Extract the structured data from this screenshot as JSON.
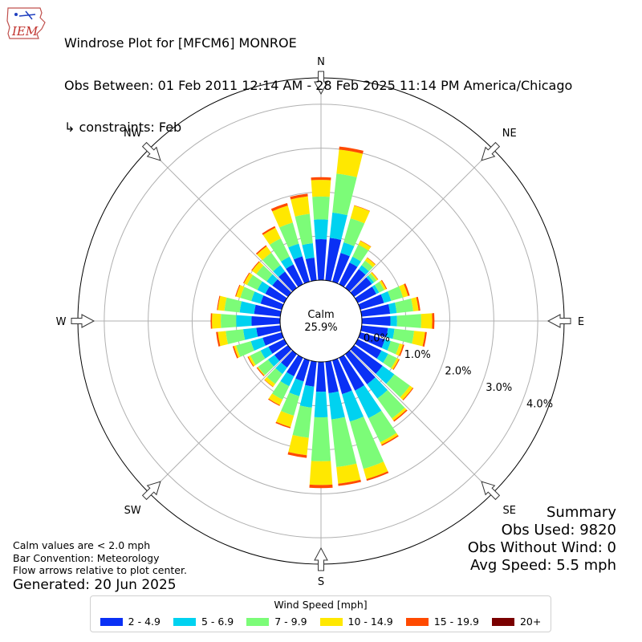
{
  "header": {
    "logo_text": "IEM",
    "title_line1": "Windrose Plot for [MFCM6] MONROE",
    "title_line2": "Obs Between: 01 Feb 2011 12:14 AM - 28 Feb 2025 11:14 PM America/Chicago",
    "title_line3": "↳ constraints: Feb"
  },
  "notes": {
    "line1": "Calm values are < 2.0 mph",
    "line2": "Bar Convention: Meteorology",
    "line3": "Flow arrows relative to plot center.",
    "generated": "Generated: 20 Jun 2025"
  },
  "summary": {
    "title": "Summary",
    "obs_used": "Obs Used: 9820",
    "obs_without_wind": "Obs Without Wind: 0",
    "avg_speed": "Avg Speed: 5.5 mph"
  },
  "legend": {
    "title": "Wind Speed [mph]",
    "items": [
      {
        "label": "2 - 4.9",
        "color": "#0a30f5"
      },
      {
        "label": "5 - 6.9",
        "color": "#00d2f0"
      },
      {
        "label": "7 - 9.9",
        "color": "#7cfc78"
      },
      {
        "label": "10 - 14.9",
        "color": "#ffe800"
      },
      {
        "label": "15 - 19.9",
        "color": "#ff4a00"
      },
      {
        "label": "20+",
        "color": "#7a0000"
      }
    ]
  },
  "chart_data": {
    "type": "windrose",
    "calm_label": "Calm",
    "calm_value": "25.9%",
    "compass_labels": [
      "N",
      "NE",
      "E",
      "SE",
      "S",
      "SW",
      "W",
      "NW"
    ],
    "radial_ticks": [
      "0.0%",
      "1.0%",
      "2.0%",
      "3.0%",
      "4.0%"
    ],
    "radial_max": 4.6,
    "directions_deg": [
      0,
      10,
      20,
      30,
      40,
      50,
      60,
      70,
      80,
      90,
      100,
      110,
      120,
      130,
      140,
      150,
      160,
      170,
      180,
      190,
      200,
      210,
      220,
      230,
      240,
      250,
      260,
      270,
      280,
      290,
      300,
      310,
      320,
      330,
      340,
      350
    ],
    "series": [
      {
        "name": "2 - 4.9",
        "color": "#0a30f5",
        "values": [
          0.93,
          0.97,
          0.68,
          0.55,
          0.53,
          0.5,
          0.47,
          0.56,
          0.65,
          0.65,
          0.6,
          0.58,
          0.6,
          0.8,
          0.85,
          0.83,
          0.8,
          0.72,
          0.68,
          0.57,
          0.5,
          0.47,
          0.38,
          0.38,
          0.4,
          0.45,
          0.55,
          0.65,
          0.6,
          0.5,
          0.48,
          0.44,
          0.46,
          0.5,
          0.6,
          0.52
        ]
      },
      {
        "name": "5 - 6.9",
        "color": "#00d2f0",
        "values": [
          0.45,
          0.58,
          0.25,
          0.15,
          0.11,
          0.06,
          0.07,
          0.17,
          0.15,
          0.15,
          0.15,
          0.14,
          0.17,
          0.33,
          0.4,
          0.7,
          0.65,
          0.6,
          0.58,
          0.48,
          0.35,
          0.25,
          0.18,
          0.18,
          0.2,
          0.28,
          0.3,
          0.35,
          0.33,
          0.22,
          0.2,
          0.16,
          0.18,
          0.2,
          0.3,
          0.33
        ]
      },
      {
        "name": "7 - 9.9",
        "color": "#7cfc78",
        "values": [
          0.52,
          0.89,
          0.57,
          0.3,
          0.13,
          0.07,
          0.13,
          0.28,
          0.38,
          0.55,
          0.45,
          0.21,
          0.22,
          0.44,
          0.56,
          0.61,
          1.12,
          1.09,
          1.0,
          0.69,
          0.46,
          0.34,
          0.28,
          0.28,
          0.26,
          0.35,
          0.4,
          0.35,
          0.35,
          0.26,
          0.26,
          0.29,
          0.35,
          0.46,
          0.5,
          0.67
        ]
      },
      {
        "name": "10 - 14.9",
        "color": "#ffe800",
        "values": [
          0.38,
          0.55,
          0.3,
          0.1,
          0.08,
          0.04,
          0.05,
          0.12,
          0.12,
          0.25,
          0.25,
          0.08,
          0.05,
          0.08,
          0.06,
          0.06,
          0.24,
          0.38,
          0.54,
          0.4,
          0.27,
          0.14,
          0.08,
          0.02,
          0.05,
          0.05,
          0.18,
          0.2,
          0.15,
          0.1,
          0.08,
          0.12,
          0.18,
          0.27,
          0.4,
          0.4
        ]
      },
      {
        "name": "15 - 19.9",
        "color": "#ff4a00",
        "values": [
          0.06,
          0.07,
          0.01,
          0.01,
          0.01,
          0.01,
          0.02,
          0.04,
          0.04,
          0.05,
          0.04,
          0.03,
          0.02,
          0.02,
          0.03,
          0.03,
          0.04,
          0.05,
          0.07,
          0.06,
          0.03,
          0.02,
          0.01,
          0.02,
          0.02,
          0.03,
          0.04,
          0.03,
          0.02,
          0.02,
          0.02,
          0.02,
          0.03,
          0.04,
          0.06,
          0.06
        ]
      },
      {
        "name": "20+",
        "color": "#7a0000",
        "values": [
          0,
          0,
          0,
          0,
          0,
          0,
          0,
          0,
          0,
          0,
          0,
          0,
          0,
          0,
          0,
          0,
          0,
          0,
          0,
          0,
          0,
          0,
          0,
          0,
          0,
          0,
          0,
          0,
          0,
          0,
          0,
          0,
          0,
          0,
          0,
          0
        ]
      }
    ]
  }
}
